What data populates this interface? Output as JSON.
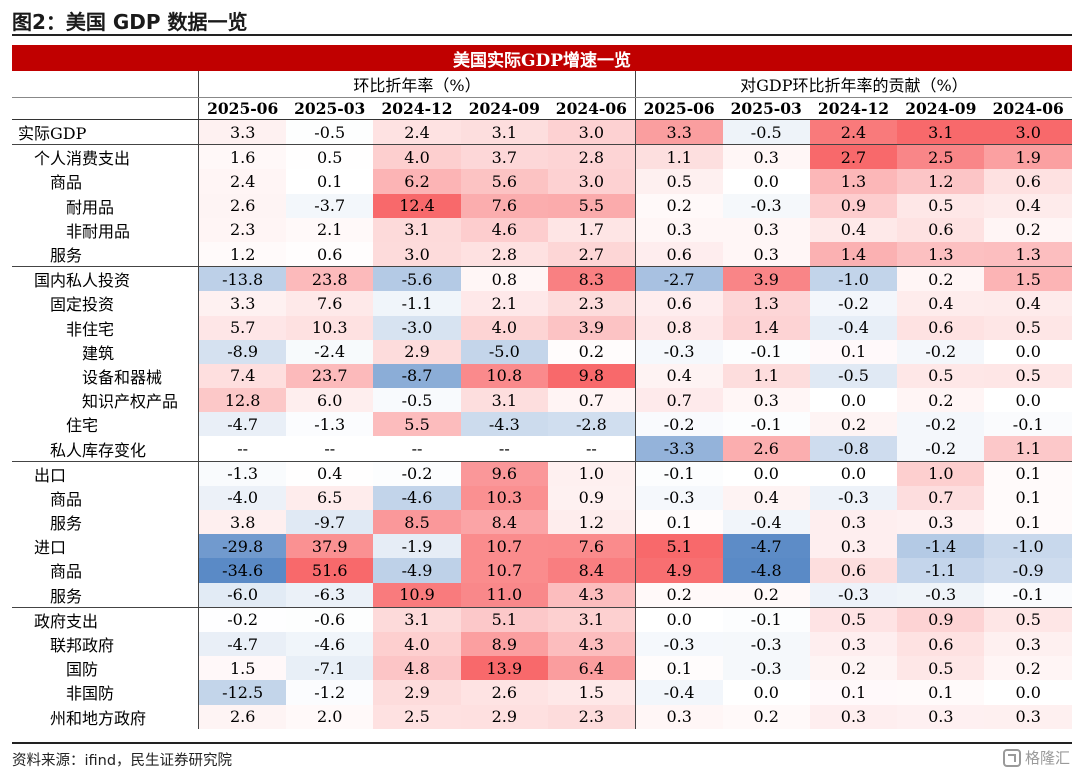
{
  "figure_title": "图2：美国 GDP 数据一览",
  "table": {
    "banner": "美国实际GDP增速一览",
    "groups": [
      "环比折年率（%）",
      "对GDP环比折年率的贡献（%）"
    ],
    "columns": [
      "2025-06",
      "2025-03",
      "2024-12",
      "2024-09",
      "2024-06",
      "2025-06",
      "2025-03",
      "2024-12",
      "2024-09",
      "2024-06"
    ],
    "rows": [
      {
        "label": "实际GDP",
        "indent": 0,
        "group_start": false,
        "values": [
          "3.3",
          "-0.5",
          "2.4",
          "3.1",
          "3.0",
          "3.3",
          "-0.5",
          "2.4",
          "3.1",
          "3.0"
        ]
      },
      {
        "label": "个人消费支出",
        "indent": 1,
        "group_start": true,
        "values": [
          "1.6",
          "0.5",
          "4.0",
          "3.7",
          "2.8",
          "1.1",
          "0.3",
          "2.7",
          "2.5",
          "1.9"
        ]
      },
      {
        "label": "商品",
        "indent": 2,
        "group_start": false,
        "values": [
          "2.4",
          "0.1",
          "6.2",
          "5.6",
          "3.0",
          "0.5",
          "0.0",
          "1.3",
          "1.2",
          "0.6"
        ]
      },
      {
        "label": "耐用品",
        "indent": 3,
        "group_start": false,
        "values": [
          "2.6",
          "-3.7",
          "12.4",
          "7.6",
          "5.5",
          "0.2",
          "-0.3",
          "0.9",
          "0.5",
          "0.4"
        ]
      },
      {
        "label": "非耐用品",
        "indent": 3,
        "group_start": false,
        "values": [
          "2.3",
          "2.1",
          "3.1",
          "4.6",
          "1.7",
          "0.3",
          "0.3",
          "0.4",
          "0.6",
          "0.2"
        ]
      },
      {
        "label": "服务",
        "indent": 2,
        "group_start": false,
        "values": [
          "1.2",
          "0.6",
          "3.0",
          "2.8",
          "2.7",
          "0.6",
          "0.3",
          "1.4",
          "1.3",
          "1.3"
        ]
      },
      {
        "label": "国内私人投资",
        "indent": 1,
        "group_start": true,
        "values": [
          "-13.8",
          "23.8",
          "-5.6",
          "0.8",
          "8.3",
          "-2.7",
          "3.9",
          "-1.0",
          "0.2",
          "1.5"
        ]
      },
      {
        "label": "固定投资",
        "indent": 2,
        "group_start": false,
        "values": [
          "3.3",
          "7.6",
          "-1.1",
          "2.1",
          "2.3",
          "0.6",
          "1.3",
          "-0.2",
          "0.4",
          "0.4"
        ]
      },
      {
        "label": "非住宅",
        "indent": 3,
        "group_start": false,
        "values": [
          "5.7",
          "10.3",
          "-3.0",
          "4.0",
          "3.9",
          "0.8",
          "1.4",
          "-0.4",
          "0.6",
          "0.5"
        ]
      },
      {
        "label": "建筑",
        "indent": 4,
        "group_start": false,
        "values": [
          "-8.9",
          "-2.4",
          "2.9",
          "-5.0",
          "0.2",
          "-0.3",
          "-0.1",
          "0.1",
          "-0.2",
          "0.0"
        ]
      },
      {
        "label": "设备和器械",
        "indent": 4,
        "group_start": false,
        "values": [
          "7.4",
          "23.7",
          "-8.7",
          "10.8",
          "9.8",
          "0.4",
          "1.1",
          "-0.5",
          "0.5",
          "0.5"
        ]
      },
      {
        "label": "知识产权产品",
        "indent": 4,
        "group_start": false,
        "values": [
          "12.8",
          "6.0",
          "-0.5",
          "3.1",
          "0.7",
          "0.7",
          "0.3",
          "0.0",
          "0.2",
          "0.0"
        ]
      },
      {
        "label": "住宅",
        "indent": 3,
        "group_start": false,
        "values": [
          "-4.7",
          "-1.3",
          "5.5",
          "-4.3",
          "-2.8",
          "-0.2",
          "-0.1",
          "0.2",
          "-0.2",
          "-0.1"
        ]
      },
      {
        "label": "私人库存变化",
        "indent": 2,
        "group_start": false,
        "values": [
          "--",
          "--",
          "--",
          "--",
          "--",
          "-3.3",
          "2.6",
          "-0.8",
          "-0.2",
          "1.1"
        ]
      },
      {
        "label": "出口",
        "indent": 1,
        "group_start": true,
        "values": [
          "-1.3",
          "0.4",
          "-0.2",
          "9.6",
          "1.0",
          "-0.1",
          "0.0",
          "0.0",
          "1.0",
          "0.1"
        ]
      },
      {
        "label": "商品",
        "indent": 2,
        "group_start": false,
        "values": [
          "-4.0",
          "6.5",
          "-4.6",
          "10.3",
          "0.9",
          "-0.3",
          "0.4",
          "-0.3",
          "0.7",
          "0.1"
        ]
      },
      {
        "label": "服务",
        "indent": 2,
        "group_start": false,
        "values": [
          "3.8",
          "-9.7",
          "8.5",
          "8.4",
          "1.2",
          "0.1",
          "-0.4",
          "0.3",
          "0.3",
          "0.1"
        ]
      },
      {
        "label": "进口",
        "indent": 1,
        "group_start": false,
        "values": [
          "-29.8",
          "37.9",
          "-1.9",
          "10.7",
          "7.6",
          "5.1",
          "-4.7",
          "0.3",
          "-1.4",
          "-1.0"
        ]
      },
      {
        "label": "商品",
        "indent": 2,
        "group_start": false,
        "values": [
          "-34.6",
          "51.6",
          "-4.9",
          "10.7",
          "8.4",
          "4.9",
          "-4.8",
          "0.6",
          "-1.1",
          "-0.9"
        ]
      },
      {
        "label": "服务",
        "indent": 2,
        "group_start": false,
        "values": [
          "-6.0",
          "-6.3",
          "10.9",
          "11.0",
          "4.3",
          "0.2",
          "0.2",
          "-0.3",
          "-0.3",
          "-0.1"
        ]
      },
      {
        "label": "政府支出",
        "indent": 1,
        "group_start": true,
        "values": [
          "-0.2",
          "-0.6",
          "3.1",
          "5.1",
          "3.1",
          "0.0",
          "-0.1",
          "0.5",
          "0.9",
          "0.5"
        ]
      },
      {
        "label": "联邦政府",
        "indent": 2,
        "group_start": false,
        "values": [
          "-4.7",
          "-4.6",
          "4.0",
          "8.9",
          "4.3",
          "-0.3",
          "-0.3",
          "0.3",
          "0.6",
          "0.3"
        ]
      },
      {
        "label": "国防",
        "indent": 3,
        "group_start": false,
        "values": [
          "1.5",
          "-7.1",
          "4.8",
          "13.9",
          "6.4",
          "0.1",
          "-0.3",
          "0.2",
          "0.5",
          "0.2"
        ]
      },
      {
        "label": "非国防",
        "indent": 3,
        "group_start": false,
        "values": [
          "-12.5",
          "-1.2",
          "2.9",
          "2.6",
          "1.5",
          "-0.4",
          "0.0",
          "0.1",
          "0.1",
          "0.0"
        ]
      },
      {
        "label": "州和地方政府",
        "indent": 2,
        "group_start": false,
        "values": [
          "2.6",
          "2.0",
          "2.5",
          "2.9",
          "2.3",
          "0.3",
          "0.2",
          "0.3",
          "0.3",
          "0.3"
        ]
      }
    ]
  },
  "heatmap_colors": {
    "positive": "#f8696b",
    "negative": "#5a8ac6",
    "neutral": "#ffffff"
  },
  "source_note": "资料来源：ifind，民生证券研究院",
  "watermark": {
    "text": "格隆汇",
    "icon": "logo-icon"
  }
}
